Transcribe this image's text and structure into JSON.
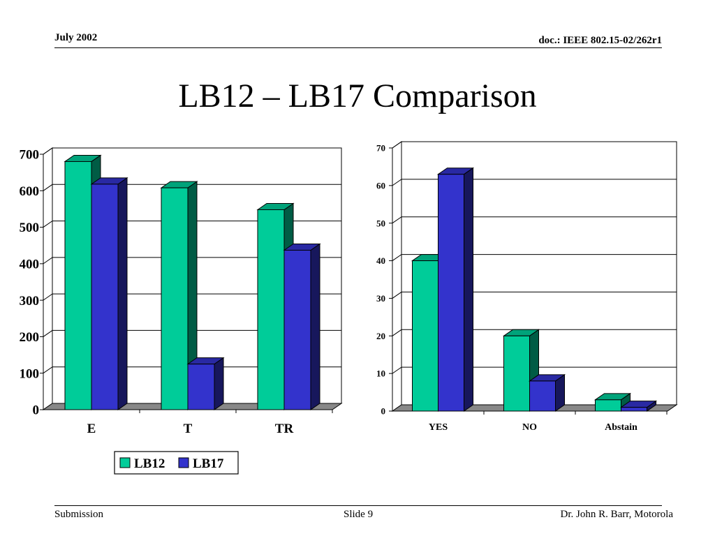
{
  "header": {
    "date": "July 2002",
    "doc": "doc.: IEEE 802.15-02/262r1"
  },
  "title": "LB12 – LB17 Comparison",
  "footer": {
    "left": "Submission",
    "center": "Slide 9",
    "right": "Dr. John R. Barr, Motorola"
  },
  "colors": {
    "lb12": "#00CC99",
    "lb17": "#3333CC",
    "floor": "#888888"
  },
  "chart_data": [
    {
      "type": "bar",
      "categories": [
        "E",
        "T",
        "TR"
      ],
      "series": [
        {
          "name": "LB12",
          "values": [
            680,
            608,
            548
          ]
        },
        {
          "name": "LB17",
          "values": [
            618,
            125,
            437
          ]
        }
      ],
      "ylim": [
        0,
        700
      ],
      "yticks": [
        "0",
        "100",
        "200",
        "300",
        "400",
        "500",
        "600",
        "700"
      ],
      "grid": true,
      "legend": {
        "position": "bottom",
        "entries": [
          "LB12",
          "LB17"
        ]
      },
      "title": "",
      "xlabel": "",
      "ylabel": ""
    },
    {
      "type": "bar",
      "categories": [
        "YES",
        "NO",
        "Abstain"
      ],
      "series": [
        {
          "values": [
            40,
            20,
            3
          ]
        },
        {
          "values": [
            63,
            8,
            1
          ]
        }
      ],
      "ylim": [
        0,
        70
      ],
      "yticks": [
        "0",
        "10",
        "20",
        "30",
        "40",
        "50",
        "60",
        "70"
      ],
      "grid": true,
      "title": "",
      "xlabel": "",
      "ylabel": ""
    }
  ]
}
